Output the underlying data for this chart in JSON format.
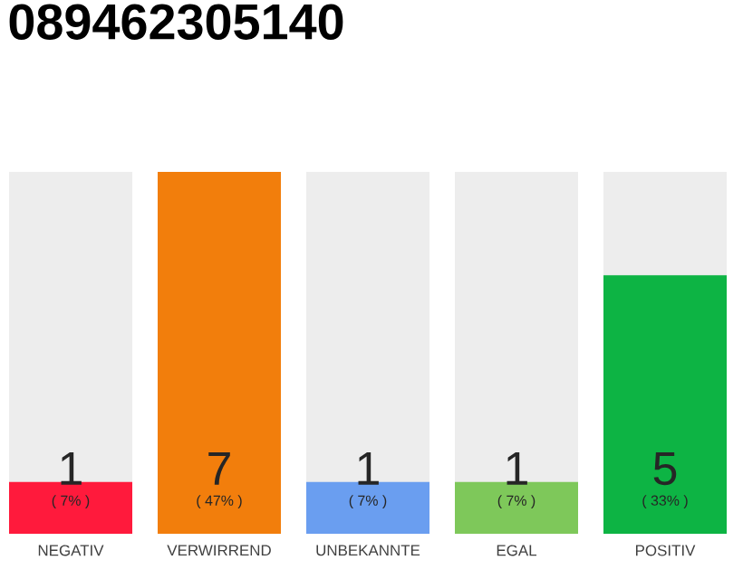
{
  "chart_data": {
    "type": "bar",
    "title": "089462305140",
    "categories": [
      "NEGATIV",
      "VERWIRREND",
      "UNBEKANNTE",
      "EGAL",
      "POSITIV"
    ],
    "values": [
      1,
      7,
      1,
      1,
      5
    ],
    "colors": [
      "#ff1a3c",
      "#f27e0c",
      "#6a9ef0",
      "#7ec85a",
      "#0db444"
    ],
    "ylim": [
      0,
      7
    ],
    "data_labels": true,
    "annotations": [
      "( 7% )",
      "( 47% )",
      "( 7% )",
      "( 7% )",
      "( 33% )"
    ]
  }
}
